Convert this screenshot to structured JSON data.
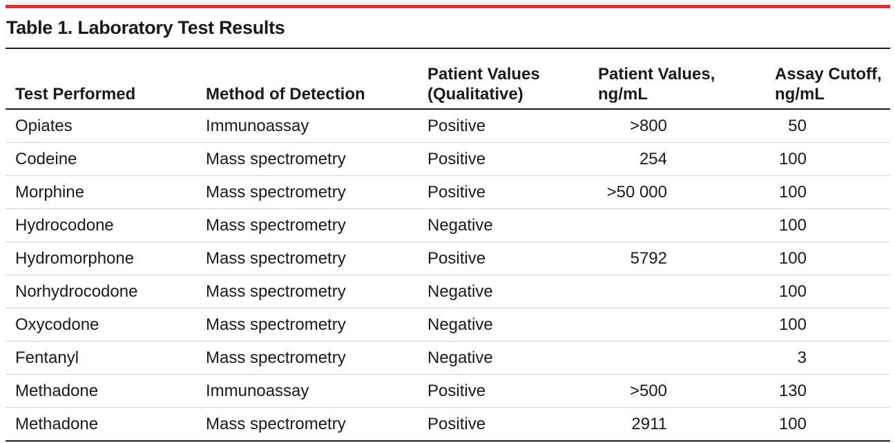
{
  "table": {
    "title": "Table 1. Laboratory Test Results",
    "headers": {
      "test": "Test Performed",
      "method": "Method of Detection",
      "qual_line1": "Patient Values",
      "qual_line2": "(Qualitative)",
      "value_line1": "Patient Values,",
      "value_line2": "ng/mL",
      "cutoff_line1": "Assay Cutoff,",
      "cutoff_line2": "ng/mL"
    },
    "rows": [
      {
        "test": "Opiates",
        "method": "Immunoassay",
        "qualitative": "Positive",
        "value": ">800",
        "cutoff": "50"
      },
      {
        "test": "Codeine",
        "method": "Mass spectrometry",
        "qualitative": "Positive",
        "value": "254",
        "cutoff": "100"
      },
      {
        "test": "Morphine",
        "method": "Mass spectrometry",
        "qualitative": "Positive",
        "value": ">50 000",
        "cutoff": "100"
      },
      {
        "test": "Hydrocodone",
        "method": "Mass spectrometry",
        "qualitative": "Negative",
        "value": "",
        "cutoff": "100"
      },
      {
        "test": "Hydromorphone",
        "method": "Mass spectrometry",
        "qualitative": "Positive",
        "value": "5792",
        "cutoff": "100"
      },
      {
        "test": "Norhydrocodone",
        "method": "Mass spectrometry",
        "qualitative": "Negative",
        "value": "",
        "cutoff": "100"
      },
      {
        "test": "Oxycodone",
        "method": "Mass spectrometry",
        "qualitative": "Negative",
        "value": "",
        "cutoff": "100"
      },
      {
        "test": "Fentanyl",
        "method": "Mass spectrometry",
        "qualitative": "Negative",
        "value": "",
        "cutoff": "3"
      },
      {
        "test": "Methadone",
        "method": "Immunoassay",
        "qualitative": "Positive",
        "value": ">500",
        "cutoff": "130"
      },
      {
        "test": "Methadone",
        "method": "Mass spectrometry",
        "qualitative": "Positive",
        "value": "2911",
        "cutoff": "100"
      }
    ]
  },
  "colors": {
    "accent_bar": "#d8353b",
    "rule": "#1a1a1a",
    "row_divider": "#cfcfcf"
  }
}
